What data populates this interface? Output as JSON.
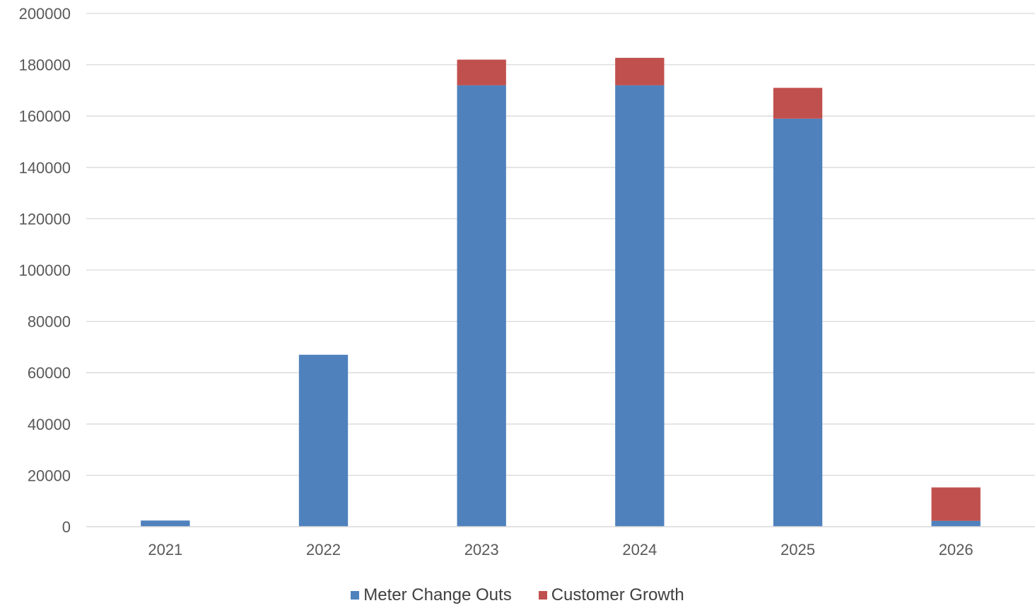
{
  "chart_data": {
    "type": "bar",
    "stacked": true,
    "categories": [
      "2021",
      "2022",
      "2023",
      "2024",
      "2025",
      "2026"
    ],
    "series": [
      {
        "name": "Meter Change Outs",
        "color": "#4f81bd",
        "values": [
          2400,
          67000,
          172000,
          172000,
          159000,
          2300
        ]
      },
      {
        "name": "Customer Growth",
        "color": "#c0504d",
        "values": [
          0,
          0,
          10000,
          10700,
          12000,
          13000
        ]
      }
    ],
    "ylim": [
      0,
      200000
    ],
    "yticks": [
      "0",
      "20000",
      "40000",
      "60000",
      "80000",
      "100000",
      "120000",
      "140000",
      "160000",
      "180000",
      "200000"
    ],
    "grid": true,
    "gridline_color": "#d9d9d9",
    "legend_position": "bottom",
    "title": "",
    "xlabel": "",
    "ylabel": ""
  }
}
